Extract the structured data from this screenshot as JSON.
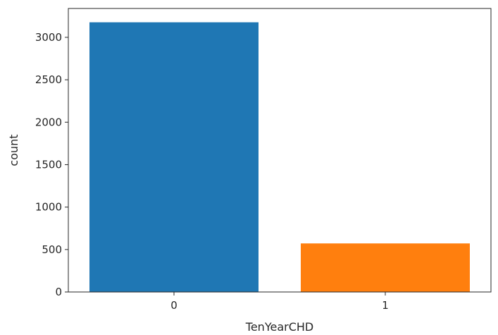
{
  "chart_data": {
    "type": "bar",
    "categories": [
      "0",
      "1"
    ],
    "values": [
      3177,
      572
    ],
    "colors": [
      "#1f77b4",
      "#ff7f0e"
    ],
    "xlabel": "TenYearCHD",
    "ylabel": "count",
    "ylim": [
      0,
      3340
    ],
    "yticks": [
      0,
      500,
      1000,
      1500,
      2000,
      2500,
      3000
    ],
    "grid": false,
    "legend": "none"
  }
}
